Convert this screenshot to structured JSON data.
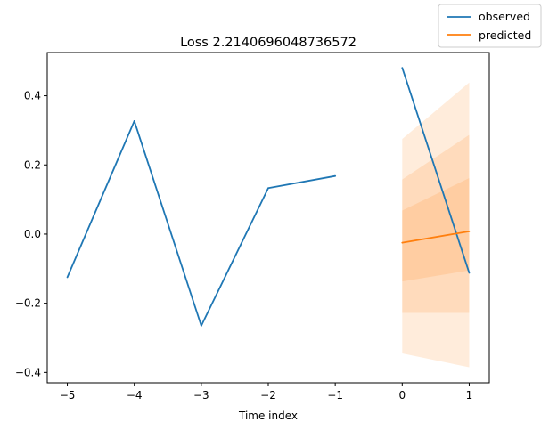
{
  "chart_data": {
    "type": "line",
    "title": "Loss 2.2140696048736572",
    "xlabel": "Time index",
    "ylabel": "",
    "xlim": [
      -5.3,
      1.3
    ],
    "ylim": [
      -0.43,
      0.525
    ],
    "x_ticks": [
      -5,
      -4,
      -3,
      -2,
      -1,
      0,
      1
    ],
    "x_tick_labels": [
      "−5",
      "−4",
      "−3",
      "−2",
      "−1",
      "0",
      "1"
    ],
    "y_ticks": [
      -0.4,
      -0.2,
      0.0,
      0.2,
      0.4
    ],
    "y_tick_labels": [
      "−0.4",
      "−0.2",
      "0.0",
      "0.2",
      "0.4"
    ],
    "grid": false,
    "legend_position": "upper-right-outside",
    "series": [
      {
        "name": "observed",
        "color": "#1f77b4",
        "segments": [
          {
            "x": [
              -5,
              -4,
              -3,
              -2,
              -1
            ],
            "y": [
              -0.125,
              0.327,
              -0.265,
              0.133,
              0.168
            ]
          },
          {
            "x": [
              0,
              1
            ],
            "y": [
              0.481,
              -0.112
            ]
          }
        ]
      },
      {
        "name": "predicted",
        "color": "#ff7f0e",
        "x": [
          0,
          1
        ],
        "y": [
          -0.025,
          0.008
        ]
      }
    ],
    "bands": [
      {
        "color": "#ff7f0e",
        "opacity": 0.15,
        "x": [
          0,
          1
        ],
        "lower": [
          -0.345,
          -0.385
        ],
        "upper": [
          0.275,
          0.438
        ]
      },
      {
        "color": "#ff7f0e",
        "opacity": 0.15,
        "x": [
          0,
          1
        ],
        "lower": [
          -0.228,
          -0.228
        ],
        "upper": [
          0.158,
          0.287
        ]
      },
      {
        "color": "#ff7f0e",
        "opacity": 0.15,
        "x": [
          0,
          1
        ],
        "lower": [
          -0.137,
          -0.105
        ],
        "upper": [
          0.068,
          0.162
        ]
      }
    ]
  }
}
